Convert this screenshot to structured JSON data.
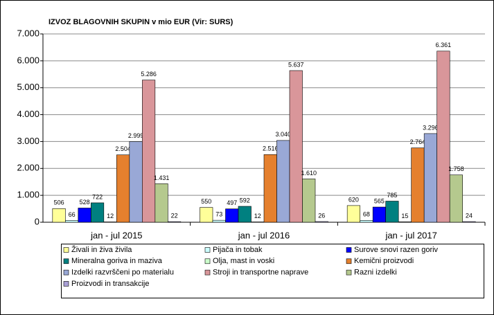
{
  "chart_data": {
    "type": "bar",
    "title": "IZVOZ BLAGOVNIH SKUPIN v mio EUR (Vir: SURS)",
    "categories": [
      "jan - jul 2015",
      "jan - jul 2016",
      "jan - jul 2017"
    ],
    "series": [
      {
        "name": "Živali in živa živila",
        "color": "#ffff99",
        "values": [
          506,
          550,
          620
        ]
      },
      {
        "name": "Pijača in tobak",
        "color": "#ccffff",
        "values": [
          66,
          73,
          68
        ]
      },
      {
        "name": "Surove snovi razen goriv",
        "color": "#0000ff",
        "values": [
          528,
          497,
          565
        ]
      },
      {
        "name": "Mineralna goriva in maziva",
        "color": "#008080",
        "values": [
          722,
          592,
          785
        ]
      },
      {
        "name": "Olja, mast in voski",
        "color": "#ccffcc",
        "values": [
          12,
          12,
          15
        ]
      },
      {
        "name": "Kemični proizvodi",
        "color": "#e5802e",
        "values": [
          2504,
          2516,
          2764
        ],
        "value_labels": [
          "2.504",
          "2.516",
          "2.764"
        ]
      },
      {
        "name": "Izdelki razvrščeni po materialu",
        "color": "#99a8d6",
        "values": [
          2999,
          3040,
          3296
        ],
        "value_labels": [
          "2.999",
          "3.040",
          "3.296"
        ]
      },
      {
        "name": "Stroji in transportne naprave",
        "color": "#d9969a",
        "values": [
          5286,
          5637,
          6361
        ],
        "value_labels": [
          "5.286",
          "5.637",
          "6.361"
        ]
      },
      {
        "name": "Razni izdelki",
        "color": "#b5c98e",
        "values": [
          1431,
          1610,
          1758
        ],
        "value_labels": [
          "1.431",
          "1.610",
          "1.758"
        ]
      },
      {
        "name": "Proizvodi in transakcije",
        "color": "#a9a0d6",
        "values": [
          22,
          26,
          24
        ]
      }
    ],
    "ylim": [
      0,
      7000
    ],
    "yticks": [
      0,
      {
        "value": 1000,
        "label": "1.000"
      },
      {
        "value": 2000,
        "label": "2.000"
      },
      {
        "value": 3000,
        "label": "3.000"
      },
      {
        "value": 4000,
        "label": "4.000"
      },
      {
        "value": 5000,
        "label": "5.000"
      },
      {
        "value": 6000,
        "label": "6.000"
      },
      {
        "value": 7000,
        "label": "7.000"
      }
    ],
    "grid": true
  }
}
